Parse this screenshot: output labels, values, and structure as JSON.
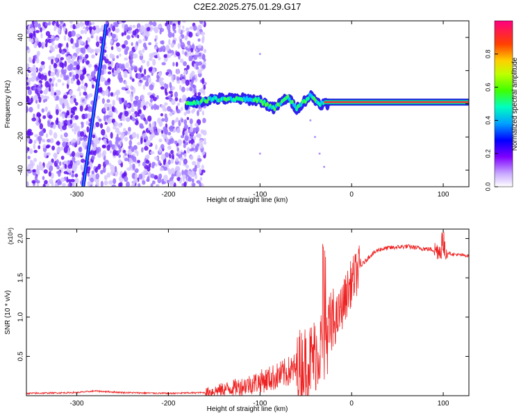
{
  "title": "C2E2.2025.275.01.29.G17",
  "chart_data": [
    {
      "type": "heatmap",
      "xlabel": "Height of straight line (km)",
      "ylabel": "Frequency (Hz)",
      "xlim": [
        -355,
        128
      ],
      "ylim": [
        -50,
        50
      ],
      "x_ticks": [
        -300,
        -200,
        -100,
        0,
        100
      ],
      "y_ticks": [
        -40,
        -20,
        0,
        20,
        40
      ],
      "colorbar": {
        "label": "Normalized spectral amplitude",
        "range": [
          0,
          1
        ],
        "ticks": [
          0.0,
          0.2,
          0.4,
          0.6,
          0.8
        ],
        "tick_labels": [
          "0.0",
          "0.2",
          "0.4",
          "0.6",
          "0.8"
        ],
        "colors": [
          "#ffffff",
          "#8000ff",
          "#0000ff",
          "#00c0ff",
          "#00ff80",
          "#a0ff00",
          "#ffff00",
          "#ff8000",
          "#ff0000",
          "#ff0080"
        ]
      },
      "features": {
        "noise_region_x": [
          -355,
          -160
        ],
        "tracked_signal": [
          {
            "x": -180,
            "y": 0
          },
          {
            "x": -150,
            "y": 3
          },
          {
            "x": -120,
            "y": 3
          },
          {
            "x": -100,
            "y": 2
          },
          {
            "x": -85,
            "y": -3
          },
          {
            "x": -70,
            "y": 4
          },
          {
            "x": -60,
            "y": -3
          },
          {
            "x": -45,
            "y": 5
          },
          {
            "x": -35,
            "y": 0
          },
          {
            "x": -20,
            "y": 0
          },
          {
            "x": -10,
            "y": 3
          },
          {
            "x": 0,
            "y": 1
          },
          {
            "x": 128,
            "y": 1
          }
        ],
        "diagonal_line": [
          {
            "x": -293,
            "y": -50
          },
          {
            "x": -268,
            "y": 48
          }
        ]
      }
    },
    {
      "type": "line",
      "xlabel": "Height of straight line (km)",
      "ylabel": "SNR (10 * v/v)",
      "y_multiplier": "(x10⁴)",
      "xlim": [
        -355,
        128
      ],
      "ylim": [
        0,
        2.12
      ],
      "x_ticks": [
        -300,
        -200,
        -100,
        0,
        100
      ],
      "y_ticks": [
        0.5,
        1.0,
        1.5,
        2.0
      ],
      "y_tick_labels": [
        "0.5",
        "1.0",
        "1.5",
        "2.0"
      ],
      "color": "#ee2222",
      "series": [
        {
          "x": [
            -355,
            -300,
            -280,
            -250,
            -200,
            -160,
            -140,
            -120,
            -100,
            -80,
            -60,
            -45,
            -35,
            -25,
            -15,
            -10,
            0,
            10,
            20,
            30,
            40,
            60,
            80,
            95,
            100,
            105,
            110,
            128
          ],
          "y": [
            0.03,
            0.04,
            0.06,
            0.04,
            0.03,
            0.04,
            0.08,
            0.12,
            0.18,
            0.25,
            0.35,
            0.45,
            0.6,
            0.8,
            1.0,
            1.15,
            1.45,
            1.65,
            1.78,
            1.86,
            1.88,
            1.9,
            1.87,
            1.85,
            1.86,
            1.82,
            1.8,
            1.78
          ]
        }
      ]
    }
  ]
}
